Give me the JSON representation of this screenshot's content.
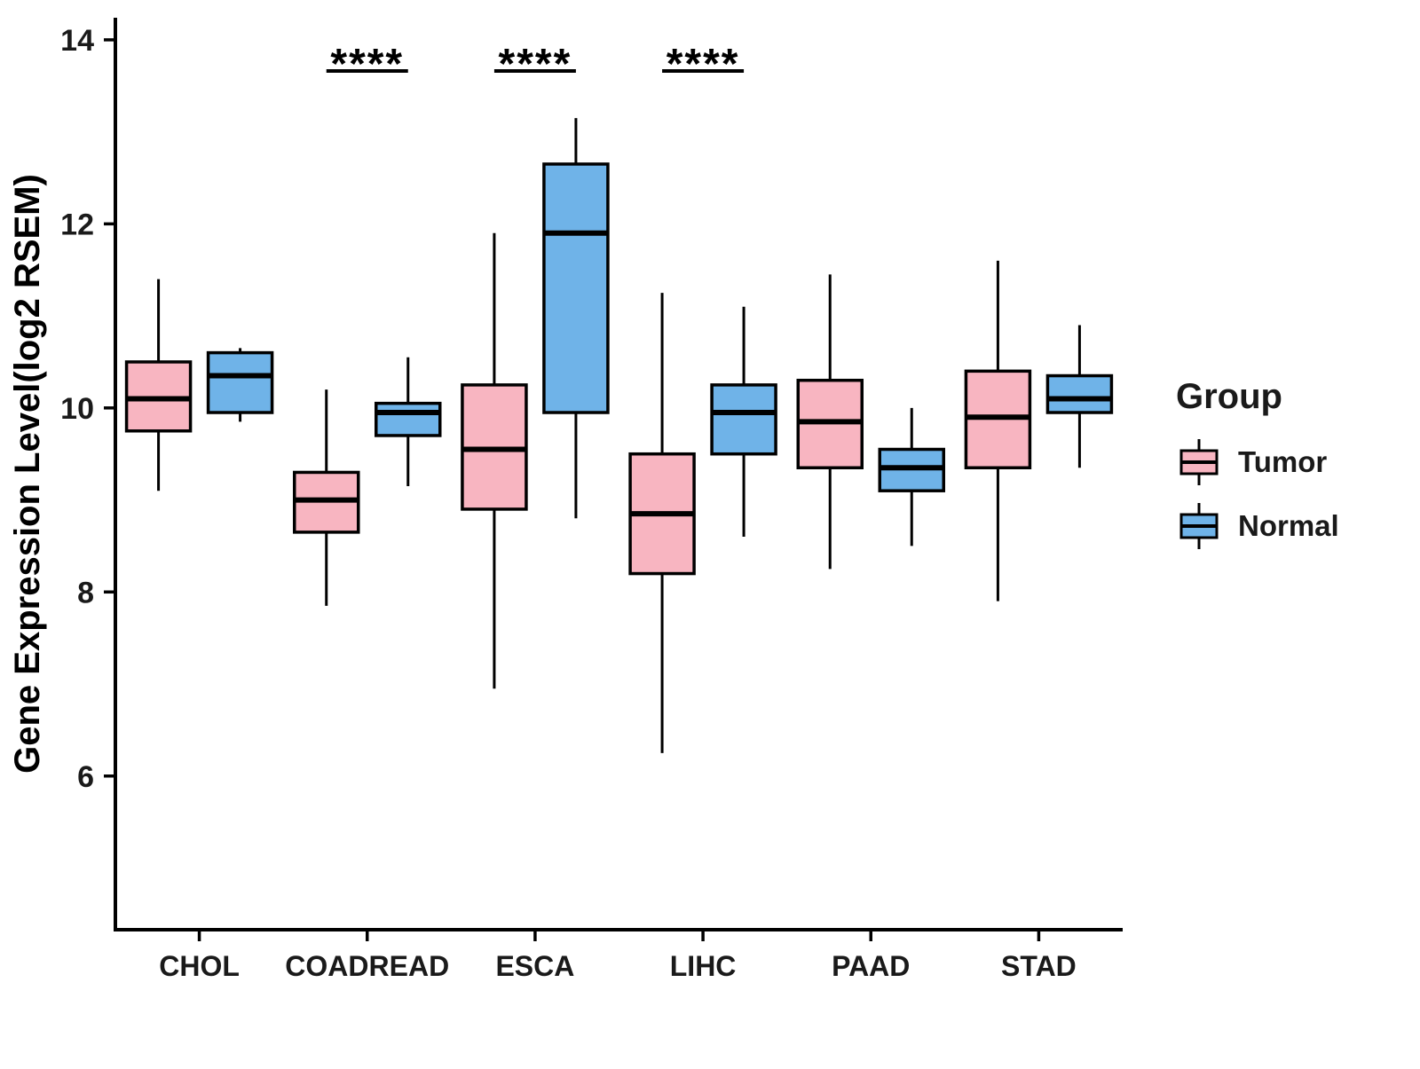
{
  "chart_data": {
    "type": "boxplot",
    "title": "",
    "xlabel": "",
    "ylabel": "Gene Expression Level(log2 RSEM)",
    "legend_title": "Group",
    "legend_position": "right",
    "grid": false,
    "yticks": [
      6,
      8,
      10,
      12,
      14
    ],
    "ylim": [
      4.33,
      14.24
    ],
    "categories": [
      "CHOL",
      "COADREAD",
      "ESCA",
      "LIHC",
      "PAAD",
      "STAD"
    ],
    "groups": [
      {
        "name": "Tumor",
        "color": "#F8B5C1"
      },
      {
        "name": "Normal",
        "color": "#6FB3E8"
      }
    ],
    "series": [
      {
        "group": "Tumor",
        "boxes": [
          {
            "category": "CHOL",
            "whisker_low": 9.1,
            "q1": 9.75,
            "median": 10.1,
            "q3": 10.5,
            "whisker_high": 11.4
          },
          {
            "category": "COADREAD",
            "whisker_low": 7.85,
            "q1": 8.65,
            "median": 9.0,
            "q3": 9.3,
            "whisker_high": 10.2
          },
          {
            "category": "ESCA",
            "whisker_low": 6.95,
            "q1": 8.9,
            "median": 9.55,
            "q3": 10.25,
            "whisker_high": 11.9
          },
          {
            "category": "LIHC",
            "whisker_low": 6.25,
            "q1": 8.2,
            "median": 8.85,
            "q3": 9.5,
            "whisker_high": 11.25
          },
          {
            "category": "PAAD",
            "whisker_low": 8.25,
            "q1": 9.35,
            "median": 9.85,
            "q3": 10.3,
            "whisker_high": 11.45
          },
          {
            "category": "STAD",
            "whisker_low": 7.9,
            "q1": 9.35,
            "median": 9.9,
            "q3": 10.4,
            "whisker_high": 11.6
          }
        ]
      },
      {
        "group": "Normal",
        "boxes": [
          {
            "category": "CHOL",
            "whisker_low": 9.85,
            "q1": 9.95,
            "median": 10.35,
            "q3": 10.6,
            "whisker_high": 10.65
          },
          {
            "category": "COADREAD",
            "whisker_low": 9.15,
            "q1": 9.7,
            "median": 9.95,
            "q3": 10.05,
            "whisker_high": 10.55
          },
          {
            "category": "ESCA",
            "whisker_low": 8.8,
            "q1": 9.95,
            "median": 11.9,
            "q3": 12.65,
            "whisker_high": 13.15
          },
          {
            "category": "LIHC",
            "whisker_low": 8.6,
            "q1": 9.5,
            "median": 9.95,
            "q3": 10.25,
            "whisker_high": 11.1
          },
          {
            "category": "PAAD",
            "whisker_low": 8.5,
            "q1": 9.1,
            "median": 9.35,
            "q3": 9.55,
            "whisker_high": 10.0
          },
          {
            "category": "STAD",
            "whisker_low": 9.35,
            "q1": 9.95,
            "median": 10.1,
            "q3": 10.35,
            "whisker_high": 10.9
          }
        ]
      }
    ],
    "annotations": [
      {
        "category": "COADREAD",
        "label": "****"
      },
      {
        "category": "ESCA",
        "label": "****"
      },
      {
        "category": "LIHC",
        "label": "****"
      }
    ],
    "style": {
      "axis_color": "#000000",
      "box_border_color": "#000000",
      "median_color": "#000000",
      "tick_label_color": "#1a1a1a"
    }
  }
}
